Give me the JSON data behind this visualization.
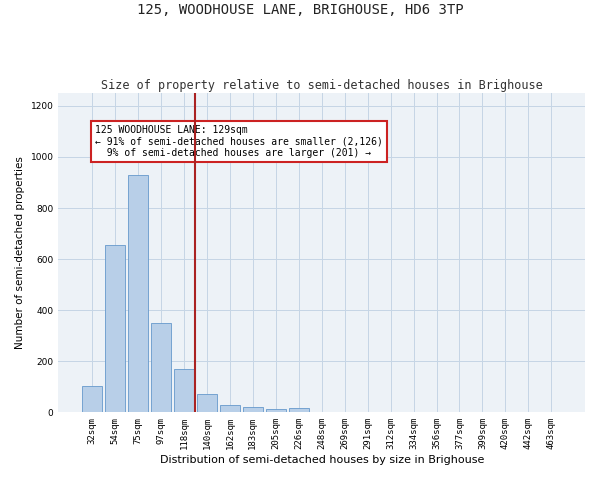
{
  "title": "125, WOODHOUSE LANE, BRIGHOUSE, HD6 3TP",
  "subtitle": "Size of property relative to semi-detached houses in Brighouse",
  "xlabel": "Distribution of semi-detached houses by size in Brighouse",
  "ylabel": "Number of semi-detached properties",
  "bar_labels": [
    "32sqm",
    "54sqm",
    "75sqm",
    "97sqm",
    "118sqm",
    "140sqm",
    "162sqm",
    "183sqm",
    "205sqm",
    "226sqm",
    "248sqm",
    "269sqm",
    "291sqm",
    "312sqm",
    "334sqm",
    "356sqm",
    "377sqm",
    "399sqm",
    "420sqm",
    "442sqm",
    "463sqm"
  ],
  "bar_values": [
    105,
    655,
    930,
    350,
    168,
    70,
    27,
    20,
    14,
    16,
    0,
    0,
    0,
    0,
    0,
    0,
    0,
    0,
    0,
    0,
    0
  ],
  "bar_color": "#b8cfe8",
  "bar_edge_color": "#6699cc",
  "vline_color": "#aa2222",
  "annotation_text": "125 WOODHOUSE LANE: 129sqm\n← 91% of semi-detached houses are smaller (2,126)\n  9% of semi-detached houses are larger (201) →",
  "annotation_box_color": "#cc2222",
  "ylim": [
    0,
    1250
  ],
  "yticks": [
    0,
    200,
    400,
    600,
    800,
    1000,
    1200
  ],
  "grid_color": "#c5d5e5",
  "background_color": "#edf2f7",
  "title_fontsize": 10,
  "subtitle_fontsize": 8.5,
  "xlabel_fontsize": 8,
  "ylabel_fontsize": 7.5,
  "tick_fontsize": 6.5,
  "footer_fontsize": 6,
  "annot_fontsize": 7
}
